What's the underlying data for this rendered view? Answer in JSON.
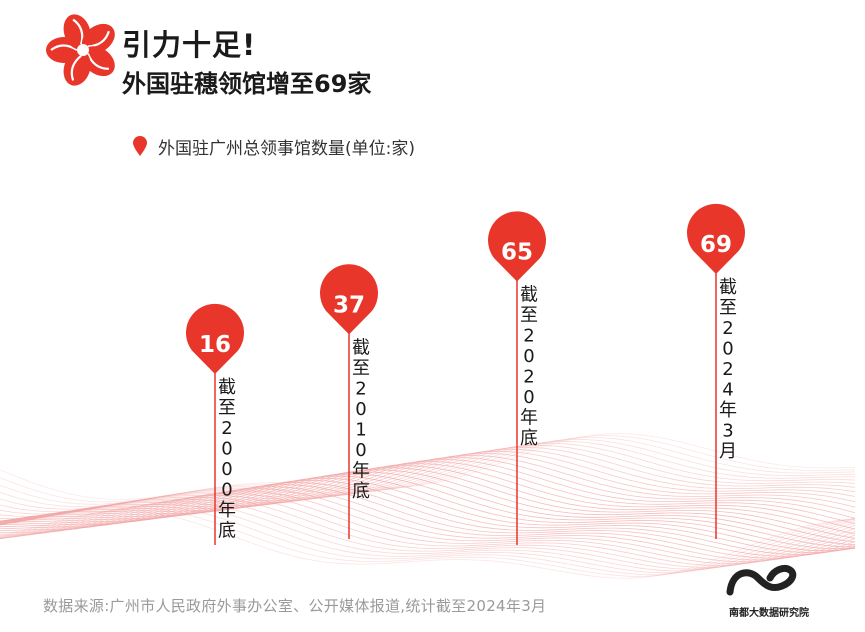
{
  "header": {
    "title": "引力十足!",
    "subtitle": "外国驻穗领馆增至69家"
  },
  "colors": {
    "accent": "#e8362b",
    "stem": "#e8362b",
    "text": "#1a1a1a",
    "source_text": "#9a9a9a",
    "wave": "#f2a6a6"
  },
  "source": "数据来源:广州市人民政府外事办公室、公开媒体报道,统计截至2024年3月",
  "organization": "南都大数据研究院",
  "chart_data": {
    "type": "bar",
    "title": "外国驻广州总领事馆数量(单位:家)",
    "unit": "家",
    "legend": "外国驻广州总领事馆数量(单位:家)",
    "categories": [
      "截至2000年底",
      "截至2010年底",
      "截至2020年底",
      "截至2024年3月"
    ],
    "values": [
      16,
      37,
      65,
      69
    ],
    "series": [
      {
        "values": [
          16,
          37,
          65,
          69
        ]
      }
    ]
  }
}
